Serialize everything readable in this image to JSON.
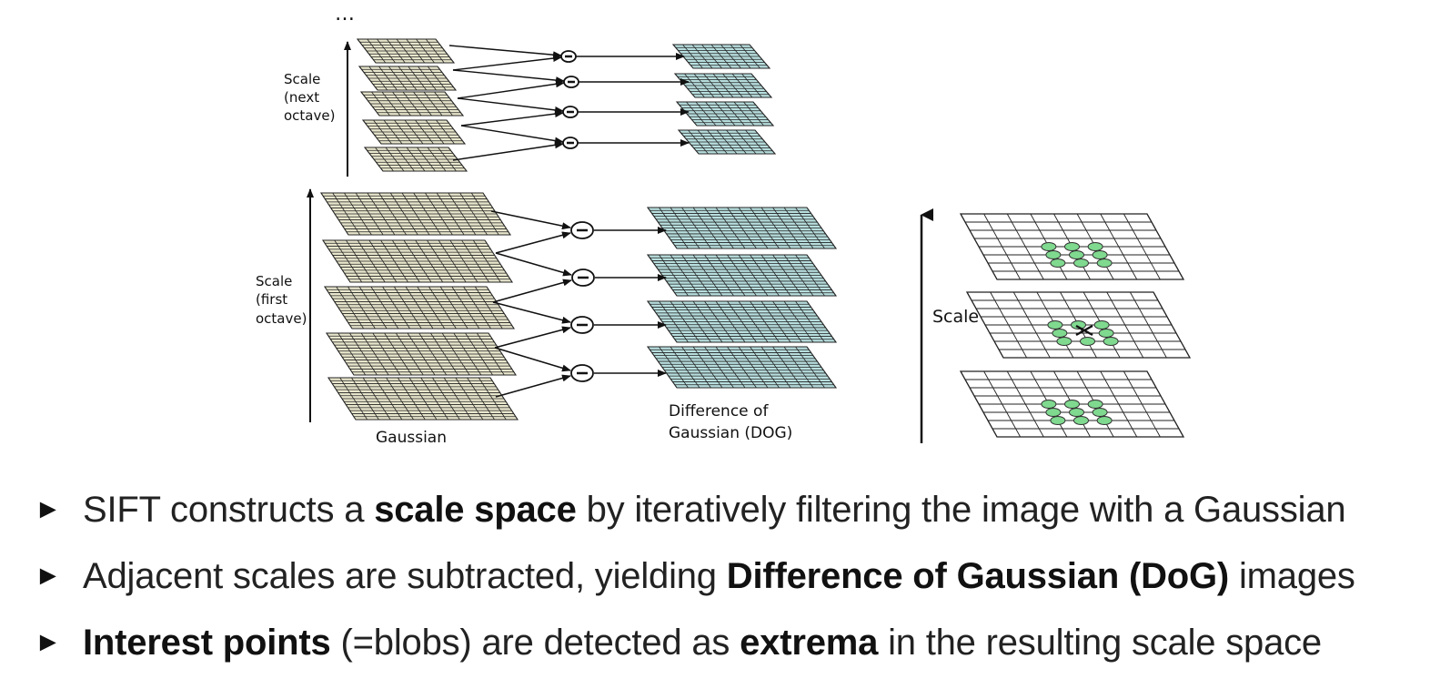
{
  "diagram": {
    "ellipsis": "…",
    "scale_next_octave_lines": [
      "Scale",
      "(next",
      "octave)"
    ],
    "scale_first_octave_lines": [
      "Scale",
      "(first",
      "octave)"
    ],
    "gaussian_label": "Gaussian",
    "dog_label_lines": [
      "Difference of",
      "Gaussian (DOG)"
    ],
    "scale_label": "Scale",
    "minus_symbol": "−",
    "colors": {
      "gaussian_fill": "#e8e6cc",
      "dog_fill": "#b8dede",
      "blob_fill": "#7fd98f",
      "grid_stroke": "#222222"
    }
  },
  "bullets": [
    {
      "marker": "►",
      "parts": [
        {
          "text": "SIFT constructs a ",
          "bold": false
        },
        {
          "text": "scale space",
          "bold": true
        },
        {
          "text": " by iteratively filtering the image with a Gaussian",
          "bold": false
        }
      ]
    },
    {
      "marker": "►",
      "parts": [
        {
          "text": "Adjacent scales are subtracted, yielding ",
          "bold": false
        },
        {
          "text": "Difference of Gaussian (DoG)",
          "bold": true
        },
        {
          "text": " images",
          "bold": false
        }
      ]
    },
    {
      "marker": "►",
      "parts": [
        {
          "text": "Interest points",
          "bold": true
        },
        {
          "text": " (=blobs) are detected as ",
          "bold": false
        },
        {
          "text": "extrema",
          "bold": true
        },
        {
          "text": " in the resulting scale space",
          "bold": false
        }
      ]
    }
  ]
}
